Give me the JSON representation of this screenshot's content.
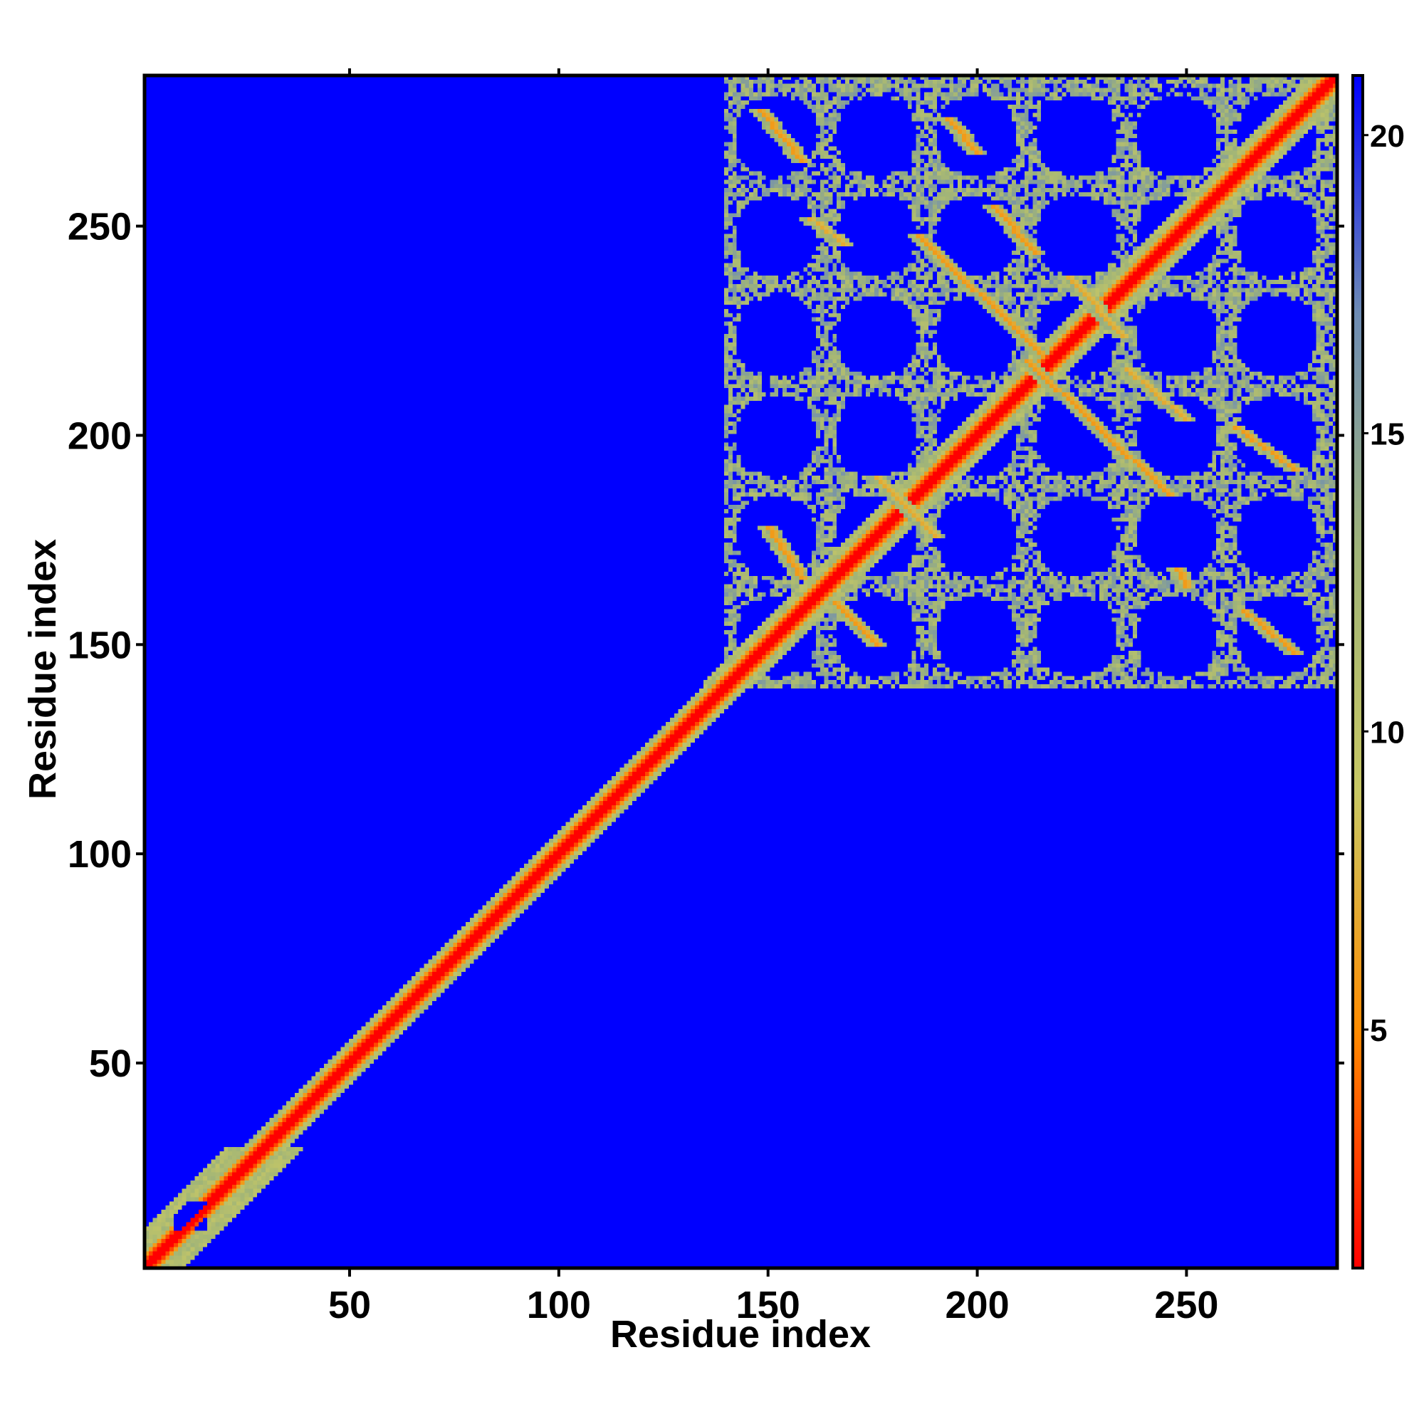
{
  "chart_data": {
    "type": "heatmap",
    "title": "",
    "xlabel": "Residue index",
    "ylabel": "Residue index",
    "xlim": [
      1,
      286
    ],
    "ylim": [
      1,
      286
    ],
    "x_ticks": [
      50,
      100,
      150,
      200,
      250
    ],
    "y_ticks": [
      50,
      100,
      150,
      200,
      250
    ],
    "x_tick_labels": [
      "50",
      "100",
      "150",
      "200",
      "250"
    ],
    "y_tick_labels": [
      "50",
      "100",
      "150",
      "200",
      "250"
    ],
    "colorbar": {
      "range": [
        1,
        21
      ],
      "ticks": [
        5,
        10,
        15,
        20
      ],
      "tick_labels": [
        "5",
        "10",
        "15",
        "20"
      ],
      "colors": [
        "#ff0000",
        "#ff8c00",
        "#c8c864",
        "#a0b478",
        "#6e8cb4",
        "#0000ff"
      ]
    },
    "background_value": 21,
    "diagonal_value": 1,
    "description_of_features": {
      "main_diagonal": "red band from residue 1 to 286, width ~8 residues with green halo",
      "contact_domain_x_range": [
        140,
        286
      ],
      "contact_domain_y_range": [
        140,
        286
      ]
    },
    "off_diagonal_contacts": [
      {
        "x_start": 148,
        "y_start": 278,
        "x_end": 158,
        "y_end": 266,
        "value": 6
      },
      {
        "x_start": 193,
        "y_start": 276,
        "x_end": 200,
        "y_end": 268,
        "value": 6
      },
      {
        "x_start": 160,
        "y_start": 252,
        "x_end": 168,
        "y_end": 246,
        "value": 7
      },
      {
        "x_start": 186,
        "y_start": 248,
        "x_end": 215,
        "y_end": 220,
        "value": 6
      },
      {
        "x_start": 204,
        "y_start": 255,
        "x_end": 214,
        "y_end": 244,
        "value": 6
      },
      {
        "x_start": 222,
        "y_start": 238,
        "x_end": 235,
        "y_end": 224,
        "value": 7
      },
      {
        "x_start": 212,
        "y_start": 218,
        "x_end": 246,
        "y_end": 186,
        "value": 6
      },
      {
        "x_start": 236,
        "y_start": 216,
        "x_end": 250,
        "y_end": 204,
        "value": 7
      },
      {
        "x_start": 262,
        "y_start": 202,
        "x_end": 276,
        "y_end": 192,
        "value": 6
      },
      {
        "x_start": 150,
        "y_start": 178,
        "x_end": 158,
        "y_end": 166,
        "value": 6
      },
      {
        "x_start": 166,
        "y_start": 160,
        "x_end": 176,
        "y_end": 150,
        "value": 6
      },
      {
        "x_start": 176,
        "y_start": 190,
        "x_end": 190,
        "y_end": 176,
        "value": 7
      },
      {
        "x_start": 248,
        "y_start": 168,
        "x_end": 250,
        "y_end": 164,
        "value": 6
      },
      {
        "x_start": 264,
        "y_start": 158,
        "x_end": 276,
        "y_end": 148,
        "value": 6
      }
    ]
  }
}
